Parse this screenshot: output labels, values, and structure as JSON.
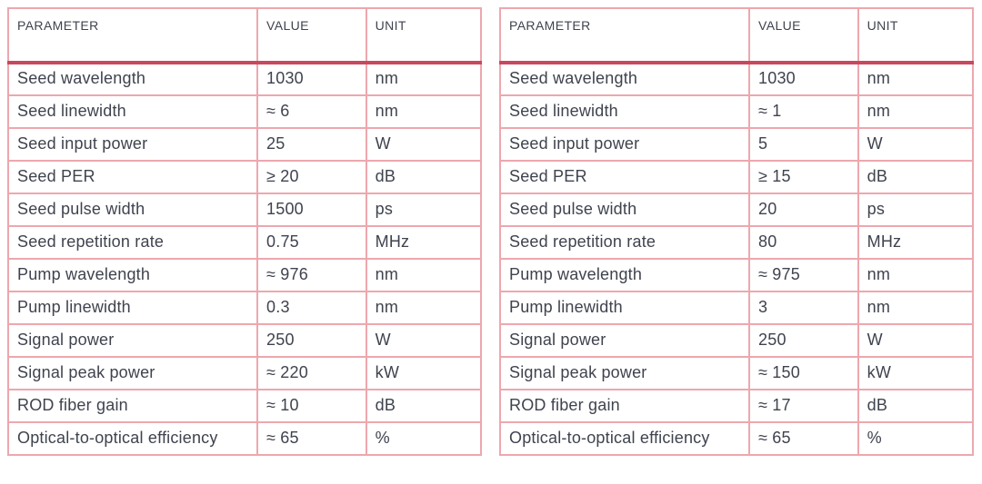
{
  "colors": {
    "border_pink": "#eda7ae",
    "header_rule_red": "#c8485e",
    "text_dark": "#3f434e",
    "page_bg": "#ffffff"
  },
  "tables": [
    {
      "name": "left-spec-table",
      "columns": [
        "Parameter",
        "Value",
        "Unit"
      ],
      "rows": [
        [
          "Seed wavelength",
          "1030",
          "nm"
        ],
        [
          "Seed linewidth",
          "≈ 6",
          "nm"
        ],
        [
          "Seed input power",
          "25",
          "W"
        ],
        [
          "Seed PER",
          "≥ 20",
          "dB"
        ],
        [
          "Seed pulse width",
          "1500",
          "ps"
        ],
        [
          "Seed repetition rate",
          "0.75",
          "MHz"
        ],
        [
          "Pump wavelength",
          "≈ 976",
          "nm"
        ],
        [
          "Pump linewidth",
          "0.3",
          "nm"
        ],
        [
          "Signal power",
          "250",
          "W"
        ],
        [
          "Signal peak power",
          "≈ 220",
          "kW"
        ],
        [
          "ROD fiber gain",
          "≈ 10",
          "dB"
        ],
        [
          "Optical-to-optical efficiency",
          "≈ 65",
          "%"
        ]
      ]
    },
    {
      "name": "right-spec-table",
      "columns": [
        "Parameter",
        "Value",
        "Unit"
      ],
      "rows": [
        [
          "Seed wavelength",
          "1030",
          "nm"
        ],
        [
          "Seed linewidth",
          "≈ 1",
          "nm"
        ],
        [
          "Seed input power",
          "5",
          "W"
        ],
        [
          "Seed PER",
          "≥ 15",
          "dB"
        ],
        [
          "Seed pulse width",
          "20",
          "ps"
        ],
        [
          "Seed repetition rate",
          "80",
          "MHz"
        ],
        [
          "Pump wavelength",
          "≈ 975",
          "nm"
        ],
        [
          "Pump linewidth",
          "3",
          "nm"
        ],
        [
          "Signal power",
          "250",
          "W"
        ],
        [
          "Signal peak power",
          "≈ 150",
          "kW"
        ],
        [
          "ROD fiber gain",
          "≈ 17",
          "dB"
        ],
        [
          "Optical-to-optical efficiency",
          "≈ 65",
          "%"
        ]
      ]
    }
  ]
}
